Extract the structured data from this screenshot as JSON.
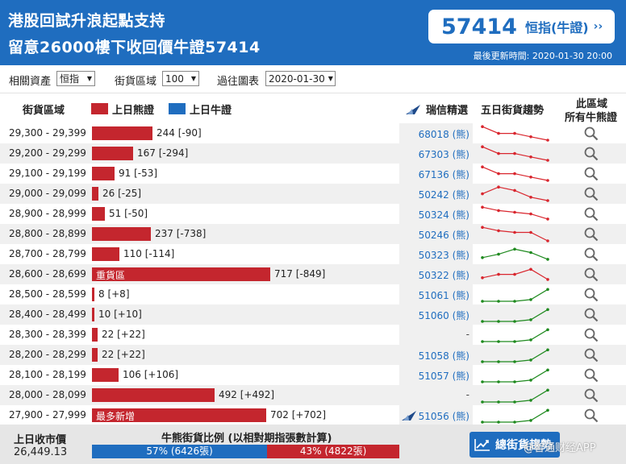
{
  "header": {
    "title_line1": "港股回試升浪起點支持",
    "title_line2": "留意26000樓下收回價牛證57414",
    "quote_number": "57414",
    "quote_label": "恒指(牛證)",
    "quote_arrow": "››",
    "updated": "最後更新時間: 2020-01-30 20:00",
    "bg_color": "#1f6dbf"
  },
  "filters": {
    "asset_label": "相關資產",
    "asset_value": "恒指",
    "zone_label": "街貨區域",
    "zone_value": "100",
    "past_label": "過往圖表",
    "past_value": "2020-01-30"
  },
  "columns": {
    "zone": "街貨區域",
    "bear_legend": "上日熊證",
    "bull_legend": "上日牛證",
    "pick": "瑞信精選",
    "trend": "五日街貨趨勢",
    "all_line1": "此區域",
    "all_line2": "所有牛熊證"
  },
  "colors": {
    "bear": "#c4262e",
    "bull": "#1f6dbf",
    "trend_bear": "#d9262e",
    "trend_bull": "#1f8a1f"
  },
  "rows": [
    {
      "range": "29,300 - 29,399",
      "type": "bear",
      "qty": 244,
      "label": "244 [-90]",
      "tag": "",
      "warrant": "68018 (熊)",
      "trend": [
        5,
        3,
        3,
        2,
        1
      ]
    },
    {
      "range": "29,200 - 29,299",
      "type": "bear",
      "qty": 167,
      "label": "167 [-294]",
      "tag": "",
      "warrant": "67303 (熊)",
      "trend": [
        5,
        3,
        3,
        2,
        1
      ]
    },
    {
      "range": "29,100 - 29,199",
      "type": "bear",
      "qty": 91,
      "label": "91 [-53]",
      "tag": "",
      "warrant": "67136 (熊)",
      "trend": [
        5,
        3,
        3,
        2,
        1
      ]
    },
    {
      "range": "29,000 - 29,099",
      "type": "bear",
      "qty": 26,
      "label": "26 [-25]",
      "tag": "",
      "warrant": "50242 (熊)",
      "trend": [
        3,
        5,
        4,
        2,
        1
      ]
    },
    {
      "range": "28,900 - 28,999",
      "type": "bear",
      "qty": 51,
      "label": "51 [-50]",
      "tag": "",
      "warrant": "50324 (熊)",
      "trend": [
        5,
        4,
        3.5,
        3,
        1.5
      ]
    },
    {
      "range": "28,800 - 28,899",
      "type": "bear",
      "qty": 237,
      "label": "237 [-738]",
      "tag": "",
      "warrant": "50246 (熊)",
      "trend": [
        5,
        4,
        3.5,
        3.5,
        1
      ]
    },
    {
      "range": "28,700 - 28,799",
      "type": "bear",
      "qty": 110,
      "label": "110 [-114]",
      "tag": "",
      "warrant": "50323 (熊)",
      "trend": [
        2,
        3,
        4.5,
        3.5,
        1.5
      ],
      "trend_color": "bull"
    },
    {
      "range": "28,600 - 28,699",
      "type": "bear",
      "qty": 717,
      "label": "717 [-849]",
      "tag": "重貨區",
      "warrant": "50322 (熊)",
      "trend": [
        2,
        3,
        3,
        4.5,
        1.5
      ]
    },
    {
      "range": "28,500 - 28,599",
      "type": "bear",
      "qty": 8,
      "label": "8 [+8]",
      "tag": "",
      "warrant": "51061 (熊)",
      "trend": [
        1,
        1,
        1,
        1.5,
        4.5
      ],
      "trend_color": "bull"
    },
    {
      "range": "28,400 - 28,499",
      "type": "bear",
      "qty": 10,
      "label": "10 [+10]",
      "tag": "",
      "warrant": "51060 (熊)",
      "trend": [
        1,
        1,
        1,
        1.5,
        4.5
      ],
      "trend_color": "bull"
    },
    {
      "range": "28,300 - 28,399",
      "type": "bear",
      "qty": 22,
      "label": "22 [+22]",
      "tag": "",
      "warrant": "-",
      "trend": [
        1,
        1,
        1,
        1.5,
        4.5
      ],
      "trend_color": "bull"
    },
    {
      "range": "28,200 - 28,299",
      "type": "bear",
      "qty": 22,
      "label": "22 [+22]",
      "tag": "",
      "warrant": "51058 (熊)",
      "trend": [
        1,
        1,
        1,
        1.5,
        4.5
      ],
      "trend_color": "bull"
    },
    {
      "range": "28,100 - 28,199",
      "type": "bear",
      "qty": 106,
      "label": "106 [+106]",
      "tag": "",
      "warrant": "51057 (熊)",
      "trend": [
        1,
        1,
        1,
        1.5,
        4.5
      ],
      "trend_color": "bull"
    },
    {
      "range": "28,000 - 28,099",
      "type": "bear",
      "qty": 492,
      "label": "492 [+492]",
      "tag": "",
      "warrant": "-",
      "trend": [
        1,
        1,
        1,
        1.5,
        4.5
      ],
      "trend_color": "bull"
    },
    {
      "range": "27,900 - 27,999",
      "type": "bear",
      "qty": 702,
      "label": "702 [+702]",
      "tag": "最多新增",
      "warrant": "51056 (熊)",
      "pick_icon": true,
      "trend": [
        1,
        1,
        1,
        1.5,
        4.5
      ],
      "trend_color": "bull"
    }
  ],
  "footer": {
    "prev_close_label": "上日收市價",
    "prev_close_value": "26,449.13",
    "ratio_label": "牛熊街貨比例 (以相對期指張數計算)",
    "bull_pct_value": 57,
    "bull_text": "57% (6426張)",
    "bear_text": "43% (4822張)",
    "trend_button": "總街貨趨勢"
  },
  "watermark": "@智通财经APP"
}
